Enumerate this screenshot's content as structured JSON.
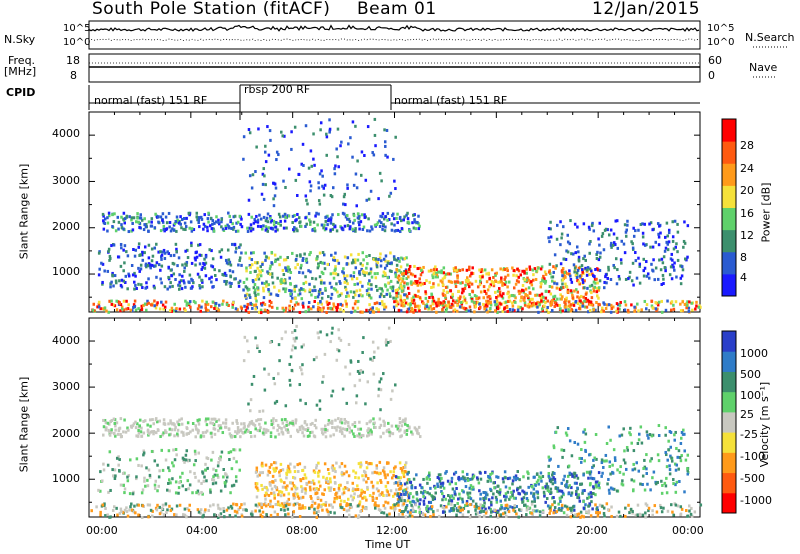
{
  "header": {
    "station": "South Pole Station (fitACF)",
    "beam": "Beam 01",
    "date": "12/Jan/2015"
  },
  "panels_top": {
    "nsky_label": "N.Sky",
    "nsky_ticks": [
      "10^5",
      "10^0"
    ],
    "nsearch_label": "N.Search",
    "nsearch_ticks": [
      "10^5",
      "10^0"
    ],
    "freq_label": "Freq.",
    "freq_unit": "[MHz]",
    "freq_ticks": [
      "18",
      "8"
    ],
    "nave_label": "Nave",
    "nave_ticks": [
      "60",
      "0"
    ],
    "cpid_label": "CPID",
    "cpid_segments": [
      {
        "label": "normal (fast) 151 RF",
        "start_h": 0,
        "end_h": 6
      },
      {
        "label": "rbsp 200 RF",
        "start_h": 6,
        "end_h": 12
      },
      {
        "label": "normal (fast) 151 RF",
        "start_h": 12,
        "end_h": 24
      }
    ]
  },
  "chart_data": [
    {
      "type": "heatmap",
      "ylabel": "Slant Range [km]",
      "ylim": [
        180,
        4500
      ],
      "yticks": [
        "1000",
        "2000",
        "3000",
        "4000"
      ],
      "xlim": [
        0,
        24
      ],
      "colorbar_label": "Power [dB]",
      "colorbar_ticks": [
        "4",
        "8",
        "12",
        "16",
        "20",
        "24",
        "28"
      ],
      "colorbar_colors": [
        "#1a1aff",
        "#2a5bd1",
        "#3c8f6d",
        "#5fd16b",
        "#f5e13a",
        "#ff9a1a",
        "#ff5a10",
        "#ff0000"
      ]
    },
    {
      "type": "heatmap",
      "ylabel": "Slant Range [km]",
      "ylim": [
        180,
        4500
      ],
      "yticks": [
        "1000",
        "2000",
        "3000",
        "4000"
      ],
      "xlim": [
        0,
        24
      ],
      "xlabel": "Time UT",
      "xticks": [
        "00:00",
        "04:00",
        "08:00",
        "12:00",
        "16:00",
        "20:00",
        "00:00"
      ],
      "colorbar_label": "Velocity [m s⁻¹]",
      "colorbar_ticks": [
        "1000",
        "500",
        "100",
        "25",
        "-25",
        "-100",
        "-500",
        "-1000"
      ],
      "colorbar_colors": [
        "#2a3fc9",
        "#2f7cc8",
        "#3c8f6d",
        "#5fd16b",
        "#c8c8c0",
        "#f5e13a",
        "#ff9a1a",
        "#ff5a10",
        "#ff0000"
      ]
    }
  ]
}
